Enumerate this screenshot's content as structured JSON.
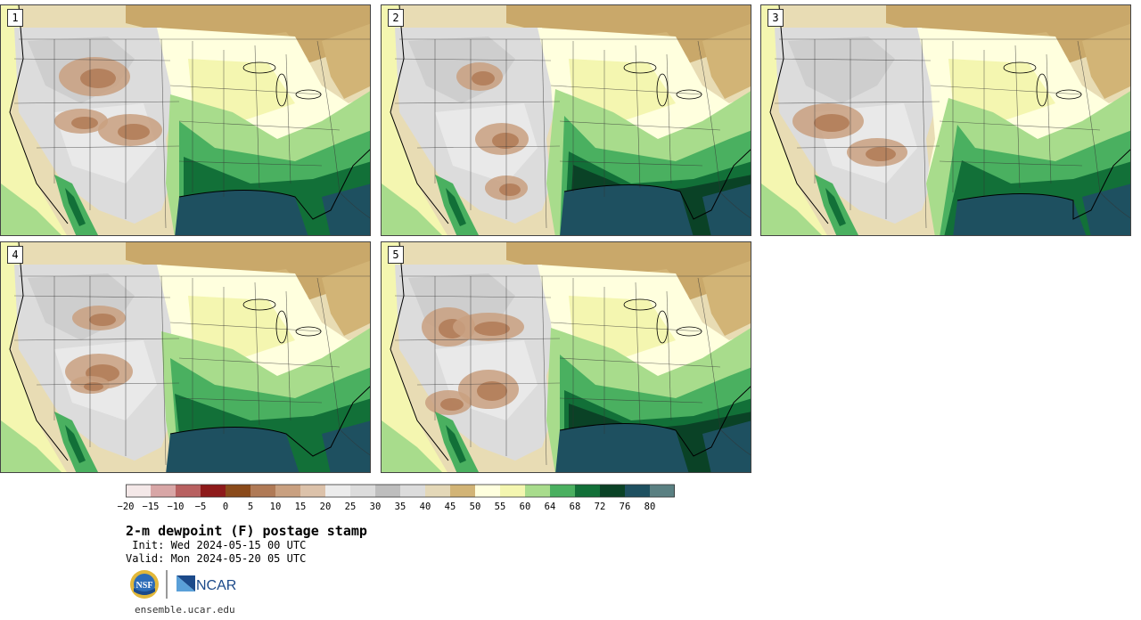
{
  "panels": [
    {
      "label": "1"
    },
    {
      "label": "2"
    },
    {
      "label": "3"
    },
    {
      "label": "4"
    },
    {
      "label": "5"
    }
  ],
  "colorbar": {
    "ticks": [
      "-20",
      "-15",
      "-10",
      "-5",
      "0",
      "5",
      "10",
      "15",
      "20",
      "25",
      "30",
      "35",
      "40",
      "45",
      "50",
      "55",
      "60",
      "64",
      "68",
      "72",
      "76",
      "80"
    ],
    "colors": [
      "#f4e8e8",
      "#d8a6a6",
      "#b86060",
      "#8e1a1a",
      "#8a4a1a",
      "#b07a56",
      "#c9a080",
      "#dcc2aa",
      "#ececec",
      "#dcdcdc",
      "#bebebe",
      "#dcdcdc",
      "#e4d8b8",
      "#d2b476",
      "#ffffde",
      "#f4f6b0",
      "#a8dc8c",
      "#4ab060",
      "#127038",
      "#0a4226",
      "#1e5060",
      "#5a8082"
    ]
  },
  "title": "2-m dewpoint (F) postage stamp",
  "init": " Init: Wed 2024-05-15 00 UTC",
  "valid": "Valid: Mon 2024-05-20 05 UTC",
  "logos": {
    "nsf": "NSF",
    "ncar": "NCAR"
  },
  "website": "ensemble.ucar.edu"
}
